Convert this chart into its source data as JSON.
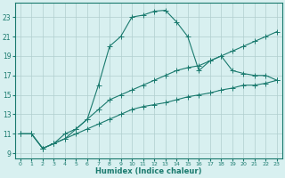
{
  "xlabel": "Humidex (Indice chaleur)",
  "x_values": [
    0,
    1,
    2,
    3,
    4,
    5,
    6,
    7,
    8,
    9,
    10,
    11,
    12,
    13,
    14,
    15,
    16,
    17,
    18,
    19,
    20,
    21,
    22,
    23
  ],
  "line1_y": [
    11.0,
    11.0,
    9.5,
    10.0,
    10.5,
    11.5,
    12.5,
    16.0,
    20.0,
    21.0,
    23.0,
    23.2,
    23.6,
    23.7,
    22.5,
    21.0,
    17.5,
    18.5,
    19.0,
    17.5,
    17.2,
    17.0,
    17.0,
    16.5
  ],
  "line2_y": [
    11.0,
    11.0,
    9.5,
    10.0,
    11.0,
    11.5,
    12.5,
    13.5,
    14.5,
    15.0,
    15.5,
    16.0,
    16.5,
    17.0,
    17.5,
    17.8,
    18.0,
    18.5,
    19.0,
    19.5,
    20.0,
    20.5,
    21.0,
    21.5
  ],
  "line3_y": [
    11.0,
    11.0,
    9.5,
    10.0,
    10.5,
    11.0,
    11.5,
    12.0,
    12.5,
    13.0,
    13.5,
    13.8,
    14.0,
    14.2,
    14.5,
    14.8,
    15.0,
    15.2,
    15.5,
    15.7,
    16.0,
    16.0,
    16.2,
    16.5
  ],
  "line_color": "#1a7a6e",
  "bg_color": "#d8f0f0",
  "grid_color": "#b0cece",
  "xlim": [
    -0.5,
    23.5
  ],
  "ylim": [
    8.5,
    24.5
  ],
  "yticks": [
    9,
    11,
    13,
    15,
    17,
    19,
    21,
    23
  ],
  "xticks": [
    0,
    1,
    2,
    3,
    4,
    5,
    6,
    7,
    8,
    9,
    10,
    11,
    12,
    13,
    14,
    15,
    16,
    17,
    18,
    19,
    20,
    21,
    22,
    23
  ]
}
